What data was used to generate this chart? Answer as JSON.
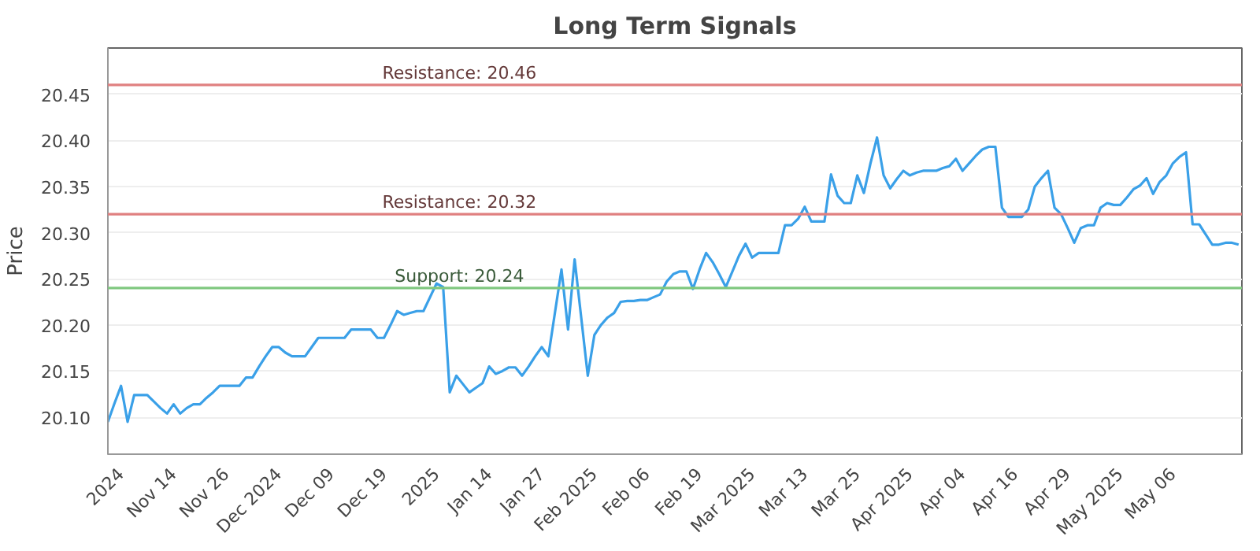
{
  "chart_data": {
    "type": "line",
    "title": "Long Term Signals",
    "ylabel": "Price",
    "categories": [
      null,
      null,
      "2024",
      null,
      null,
      null,
      null,
      null,
      null,
      null,
      "Nov 14",
      null,
      null,
      null,
      null,
      null,
      null,
      null,
      "Nov 26",
      null,
      null,
      null,
      null,
      null,
      null,
      null,
      "Dec 2024",
      null,
      null,
      null,
      null,
      null,
      null,
      null,
      "Dec 09",
      null,
      null,
      null,
      null,
      null,
      null,
      null,
      "Dec 19",
      null,
      null,
      null,
      null,
      null,
      null,
      null,
      "2025",
      null,
      null,
      null,
      null,
      null,
      null,
      null,
      "Jan 14",
      null,
      null,
      null,
      null,
      null,
      null,
      null,
      "Jan 27",
      null,
      null,
      null,
      null,
      null,
      null,
      null,
      "Feb 2025",
      null,
      null,
      null,
      null,
      null,
      null,
      null,
      "Feb 06",
      null,
      null,
      null,
      null,
      null,
      null,
      null,
      "Feb 19",
      null,
      null,
      null,
      null,
      null,
      null,
      null,
      "Mar 2025",
      null,
      null,
      null,
      null,
      null,
      null,
      null,
      "Mar 13",
      null,
      null,
      null,
      null,
      null,
      null,
      null,
      "Mar 25",
      null,
      null,
      null,
      null,
      null,
      null,
      null,
      "Apr 2025",
      null,
      null,
      null,
      null,
      null,
      null,
      null,
      "Apr 04",
      null,
      null,
      null,
      null,
      null,
      null,
      null,
      "Apr 16",
      null,
      null,
      null,
      null,
      null,
      null,
      null,
      "Apr 29",
      null,
      null,
      null,
      null,
      null,
      null,
      null,
      "May 2025",
      null,
      null,
      null,
      null,
      null,
      null,
      null,
      "May 06",
      null,
      null,
      null,
      null,
      null,
      null,
      null,
      null,
      null,
      null
    ],
    "series": [
      {
        "color": "#3aa0e8",
        "values": [
          20.095,
          20.115,
          20.134,
          20.095,
          20.124,
          20.124,
          20.124,
          20.117,
          20.11,
          20.104,
          20.114,
          20.104,
          20.11,
          20.114,
          20.114,
          20.121,
          20.127,
          20.134,
          20.134,
          20.134,
          20.134,
          20.143,
          20.143,
          20.155,
          20.166,
          20.176,
          20.176,
          20.17,
          20.166,
          20.166,
          20.166,
          20.176,
          20.186,
          20.186,
          20.186,
          20.186,
          20.186,
          20.195,
          20.195,
          20.195,
          20.195,
          20.186,
          20.186,
          20.2,
          20.215,
          20.211,
          20.213,
          20.215,
          20.215,
          20.23,
          20.245,
          20.241,
          20.127,
          20.145,
          20.136,
          20.127,
          20.132,
          20.137,
          20.155,
          20.147,
          20.15,
          20.154,
          20.154,
          20.145,
          20.155,
          20.166,
          20.176,
          20.166,
          20.213,
          20.26,
          20.195,
          20.271,
          20.208,
          20.145,
          20.189,
          20.2,
          20.208,
          20.213,
          20.225,
          20.226,
          20.226,
          20.227,
          20.227,
          20.23,
          20.233,
          20.247,
          20.255,
          20.258,
          20.258,
          20.239,
          20.26,
          20.278,
          20.268,
          20.255,
          20.241,
          20.258,
          20.275,
          20.288,
          20.273,
          20.278,
          20.278,
          20.278,
          20.278,
          20.308,
          20.308,
          20.315,
          20.328,
          20.312,
          20.312,
          20.312,
          20.363,
          20.34,
          20.332,
          20.332,
          20.362,
          20.343,
          20.375,
          20.403,
          20.362,
          20.348,
          20.358,
          20.367,
          20.362,
          20.365,
          20.367,
          20.367,
          20.367,
          20.37,
          20.372,
          20.38,
          20.367,
          20.375,
          20.383,
          20.39,
          20.393,
          20.393,
          20.327,
          20.317,
          20.317,
          20.317,
          20.325,
          20.35,
          20.359,
          20.367,
          20.327,
          20.32,
          20.305,
          20.289,
          20.305,
          20.308,
          20.308,
          20.327,
          20.332,
          20.33,
          20.33,
          20.338,
          20.347,
          20.351,
          20.359,
          20.342,
          20.355,
          20.362,
          20.375,
          20.382,
          20.387,
          20.309,
          20.309,
          20.298,
          20.287,
          20.287,
          20.289,
          20.289,
          20.287
        ]
      }
    ],
    "ylim": [
      20.06,
      20.5
    ],
    "yticks": [
      {
        "value": 20.1,
        "label": "20.10"
      },
      20.15,
      {
        "value": 20.2,
        "label": "20.20"
      },
      20.25,
      {
        "value": 20.3,
        "label": "20.30"
      },
      20.35,
      {
        "value": 20.4,
        "label": "20.40"
      },
      20.45
    ],
    "grid": "y",
    "marker": "none",
    "line_style": "solid",
    "ref_lines": [
      {
        "axis": "y",
        "value": 20.46,
        "label": "Resistance: 20.46",
        "color": "#e08080"
      },
      {
        "axis": "y",
        "value": 20.32,
        "label": "Resistance: 20.32",
        "color": "#e08080"
      },
      {
        "axis": "y",
        "value": 20.24,
        "label": "Support: 20.24",
        "color": "#80c880"
      }
    ]
  }
}
